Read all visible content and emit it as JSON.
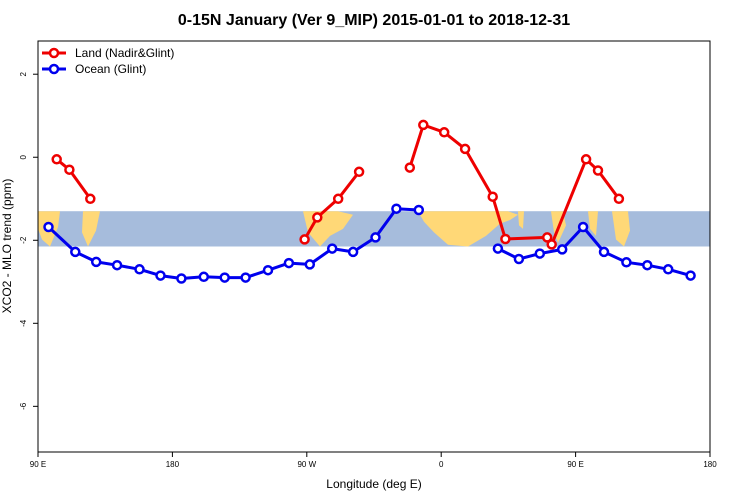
{
  "chart_data": {
    "type": "line",
    "title": "0-15N January (Ver 9_MIP)   2015-01-01 to 2018-12-31",
    "xlabel": "Longitude (deg E)",
    "ylabel": "XCO2 - MLO trend (ppm)",
    "xlim": [
      90,
      540
    ],
    "ylim": [
      -7.1,
      2.8
    ],
    "x_ticks": [
      {
        "value": 90,
        "label": "90 E"
      },
      {
        "value": 180,
        "label": "180"
      },
      {
        "value": 270,
        "label": "90 W"
      },
      {
        "value": 360,
        "label": "0"
      },
      {
        "value": 450,
        "label": "90 E"
      },
      {
        "value": 540,
        "label": "180"
      }
    ],
    "y_ticks": [
      {
        "value": 2,
        "label": "2"
      },
      {
        "value": 0,
        "label": "0"
      },
      {
        "value": -2,
        "label": "-2"
      },
      {
        "value": -4,
        "label": "-4"
      },
      {
        "value": -6,
        "label": "-6"
      }
    ],
    "map_band": {
      "ymin": -2.15,
      "ymax": -1.3,
      "ocean_color": "#a6bcdc",
      "land_color": "#ffd877"
    },
    "legend": {
      "placement": "top-left"
    },
    "series": [
      {
        "name": "Land (Nadir&Glint)",
        "color": "#ee0000",
        "segments": [
          [
            [
              102.5,
              -0.05
            ],
            [
              111,
              -0.3
            ],
            [
              125,
              -1.0
            ]
          ],
          [
            [
              268.5,
              -1.98
            ],
            [
              277,
              -1.45
            ],
            [
              291,
              -1.0
            ],
            [
              305,
              -0.35
            ]
          ],
          [
            [
              339,
              -0.25
            ],
            [
              348,
              0.78
            ],
            [
              362,
              0.6
            ],
            [
              376,
              0.2
            ],
            [
              394.5,
              -0.95
            ],
            [
              403,
              -1.97
            ],
            [
              431,
              -1.93
            ],
            [
              434,
              -2.1
            ],
            [
              457,
              -0.05
            ],
            [
              465,
              -0.32
            ],
            [
              479,
              -1.0
            ]
          ]
        ]
      },
      {
        "name": "Ocean (Glint)",
        "color": "#0000ee",
        "segments": [
          [
            [
              97,
              -1.68
            ],
            [
              115,
              -2.28
            ],
            [
              129,
              -2.52
            ],
            [
              143,
              -2.6
            ],
            [
              158,
              -2.7
            ],
            [
              172,
              -2.85
            ],
            [
              186,
              -2.92
            ],
            [
              201,
              -2.88
            ],
            [
              215,
              -2.9
            ],
            [
              229,
              -2.9
            ],
            [
              244,
              -2.72
            ],
            [
              258,
              -2.55
            ],
            [
              272,
              -2.58
            ],
            [
              287,
              -2.2
            ],
            [
              301,
              -2.28
            ],
            [
              316,
              -1.93
            ],
            [
              330,
              -1.24
            ],
            [
              345,
              -1.27
            ]
          ],
          [
            [
              398,
              -2.2
            ],
            [
              412,
              -2.45
            ],
            [
              426,
              -2.32
            ],
            [
              441,
              -2.22
            ],
            [
              455,
              -1.68
            ],
            [
              469,
              -2.28
            ],
            [
              484,
              -2.53
            ],
            [
              498,
              -2.6
            ],
            [
              512,
              -2.7
            ],
            [
              527,
              -2.85
            ]
          ]
        ]
      }
    ]
  }
}
